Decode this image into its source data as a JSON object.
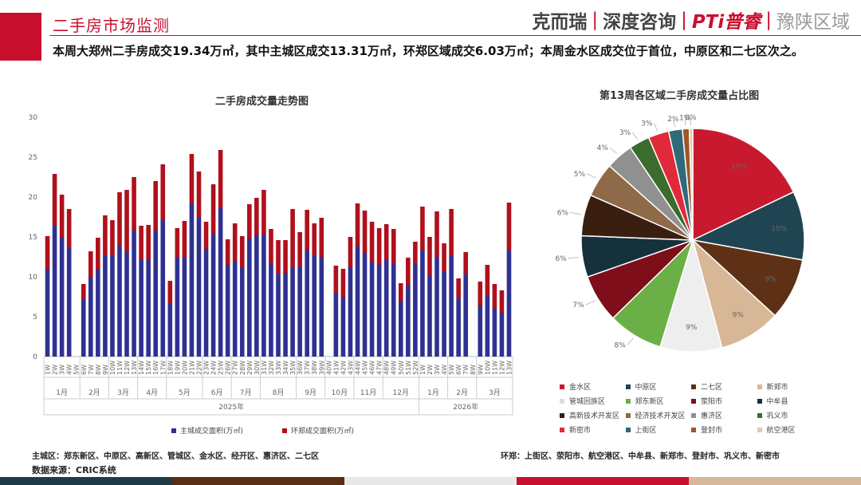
{
  "header": {
    "title": "二手房市场监测",
    "brand": [
      "克而瑞",
      "|",
      "深度咨询",
      "|",
      "PTi普睿",
      "|",
      "豫陕区域"
    ]
  },
  "headline": "本周大郑州二手房成交19.34万㎡，其中主城区成交13.31万㎡，环郑区域成交6.03万㎡；本周金水区成交位于首位，中原区和二七区次之。",
  "colors": {
    "accent": "#c8102e",
    "main_city": "#2e3192",
    "outer_ring": "#b0101c",
    "band": [
      "#1f3b47",
      "#5a2d15",
      "#e8e8e8",
      "#c8102e",
      "#d8b89b"
    ]
  },
  "chart_data": [
    {
      "type": "bar",
      "stacked": true,
      "title": "二手房成交量走势图",
      "ylim": [
        0,
        30
      ],
      "yticks": [
        0,
        5,
        10,
        15,
        20,
        25,
        30
      ],
      "categories": [
        "1W",
        "2W",
        "3W",
        "4W",
        "5W",
        "6W",
        "7W",
        "8W",
        "9W",
        "10W",
        "11W",
        "12W",
        "13W",
        "14W",
        "15W",
        "16W",
        "17W",
        "18W",
        "19W",
        "20W",
        "21W",
        "22W",
        "23W",
        "24W",
        "25W",
        "26W",
        "27W",
        "28W",
        "29W",
        "30W",
        "31W",
        "32W",
        "33W",
        "34W",
        "35W",
        "36W",
        "37W",
        "38W",
        "39W",
        "40W",
        "41W",
        "42W",
        "43W",
        "44W",
        "45W",
        "46W",
        "47W",
        "48W",
        "49W",
        "50W",
        "51W",
        "52W",
        "1W",
        "2W",
        "3W",
        "4W",
        "5W",
        "6W",
        "7W",
        "8W",
        "9W",
        "10W",
        "11W",
        "12W",
        "13W"
      ],
      "months": [
        {
          "label": "1月",
          "start": 0,
          "end": 4
        },
        {
          "label": "2月",
          "start": 5,
          "end": 8
        },
        {
          "label": "3月",
          "start": 9,
          "end": 12
        },
        {
          "label": "4月",
          "start": 13,
          "end": 16
        },
        {
          "label": "5月",
          "start": 17,
          "end": 21
        },
        {
          "label": "6月",
          "start": 22,
          "end": 25
        },
        {
          "label": "7月",
          "start": 26,
          "end": 29
        },
        {
          "label": "8月",
          "start": 30,
          "end": 34
        },
        {
          "label": "9月",
          "start": 35,
          "end": 38
        },
        {
          "label": "10月",
          "start": 39,
          "end": 42
        },
        {
          "label": "11月",
          "start": 43,
          "end": 46
        },
        {
          "label": "12月",
          "start": 47,
          "end": 51
        },
        {
          "label": "1月",
          "start": 52,
          "end": 55
        },
        {
          "label": "2月",
          "start": 56,
          "end": 59
        },
        {
          "label": "3月",
          "start": 60,
          "end": 64
        }
      ],
      "years": [
        {
          "label": "2025年",
          "start": 0,
          "end": 51
        },
        {
          "label": "2026年",
          "start": 52,
          "end": 64
        }
      ],
      "series": [
        {
          "name": "主城成交面积(万㎡)",
          "color": "#2e3192",
          "values": [
            11.0,
            16.4,
            14.9,
            13.7,
            0,
            7.2,
            10.0,
            10.9,
            12.7,
            12.6,
            13.9,
            13.2,
            15.8,
            12.2,
            12.2,
            15.8,
            17.1,
            6.7,
            12.4,
            12.4,
            19.2,
            17.4,
            13.5,
            15.4,
            18.6,
            11.5,
            12.0,
            11.2,
            14.8,
            15.2,
            15.3,
            11.7,
            10.4,
            10.5,
            11.1,
            11.3,
            13.3,
            12.6,
            12.5,
            0,
            8.0,
            7.5,
            11.2,
            13.8,
            13.0,
            11.8,
            11.5,
            12.1,
            11.6,
            7.0,
            9.0,
            11.6,
            13.3,
            10.2,
            12.4,
            10.7,
            12.7,
            7.3,
            10.3,
            0,
            6.4,
            7.7,
            6.0,
            5.5,
            13.3
          ]
        },
        {
          "name": "环郑成交面积(万㎡)",
          "color": "#b0101c",
          "values": [
            4.1,
            6.5,
            5.4,
            4.8,
            0,
            1.9,
            3.2,
            4.0,
            5.0,
            4.5,
            6.7,
            7.7,
            6.7,
            4.2,
            4.3,
            6.2,
            7.0,
            2.8,
            3.7,
            4.6,
            6.2,
            5.8,
            3.4,
            6.2,
            7.3,
            3.2,
            4.7,
            3.9,
            4.3,
            4.7,
            5.6,
            4.3,
            4.2,
            4.1,
            7.4,
            4.3,
            5.1,
            4.1,
            4.9,
            0,
            3.4,
            3.5,
            3.8,
            5.4,
            5.3,
            5.1,
            4.6,
            4.5,
            4.4,
            2.2,
            3.4,
            2.8,
            5.5,
            4.8,
            5.8,
            3.5,
            5.8,
            2.5,
            2.8,
            0,
            3.0,
            3.8,
            3.1,
            2.8,
            6.0
          ]
        }
      ]
    },
    {
      "type": "pie",
      "title": "第13周各区域二手房成交量占比图",
      "slices": [
        {
          "name": "金水区",
          "value": 18,
          "label": "18%",
          "color": "#c8192e"
        },
        {
          "name": "中原区",
          "value": 10,
          "label": "10%",
          "color": "#204552"
        },
        {
          "name": "二七区",
          "value": 9,
          "label": "9%",
          "color": "#5e3015"
        },
        {
          "name": "新郑市",
          "value": 9,
          "label": "9%",
          "color": "#d8b797"
        },
        {
          "name": "管城回族区",
          "value": 9,
          "label": "9%",
          "color": "#eeeeee"
        },
        {
          "name": "郑东新区",
          "value": 8,
          "label": "8%",
          "color": "#6ab046"
        },
        {
          "name": "荥阳市",
          "value": 7,
          "label": "7%",
          "color": "#7e0f1a"
        },
        {
          "name": "中牟县",
          "value": 6,
          "label": "6%",
          "color": "#15313b"
        },
        {
          "name": "高新技术开发区",
          "value": 6,
          "label": "6%",
          "color": "#3a1f10"
        },
        {
          "name": "经济技术开发区",
          "value": 5,
          "label": "5%",
          "color": "#8f6a48"
        },
        {
          "name": "惠济区",
          "value": 4,
          "label": "4%",
          "color": "#909090"
        },
        {
          "name": "巩义市",
          "value": 3,
          "label": "3%",
          "color": "#3c6b2e"
        },
        {
          "name": "新密市",
          "value": 3,
          "label": "3%",
          "color": "#e02a3a"
        },
        {
          "name": "上街区",
          "value": 2,
          "label": "2%",
          "color": "#2f6a7a"
        },
        {
          "name": "登封市",
          "value": 1,
          "label": "1%",
          "color": "#a0552a"
        },
        {
          "name": "航空港区",
          "value": 0.5,
          "label": "0%",
          "color": "#e4c8ad"
        }
      ]
    }
  ],
  "footer": {
    "main_city": "主城区：郑东新区、中原区、高新区、管城区、金水区、经开区、惠济区、二七区",
    "outer_ring": "环郑：上街区、荥阳市、航空港区、中牟县、新郑市、登封市、巩义市、新密市",
    "source": "数据来源：CRIC系统"
  }
}
